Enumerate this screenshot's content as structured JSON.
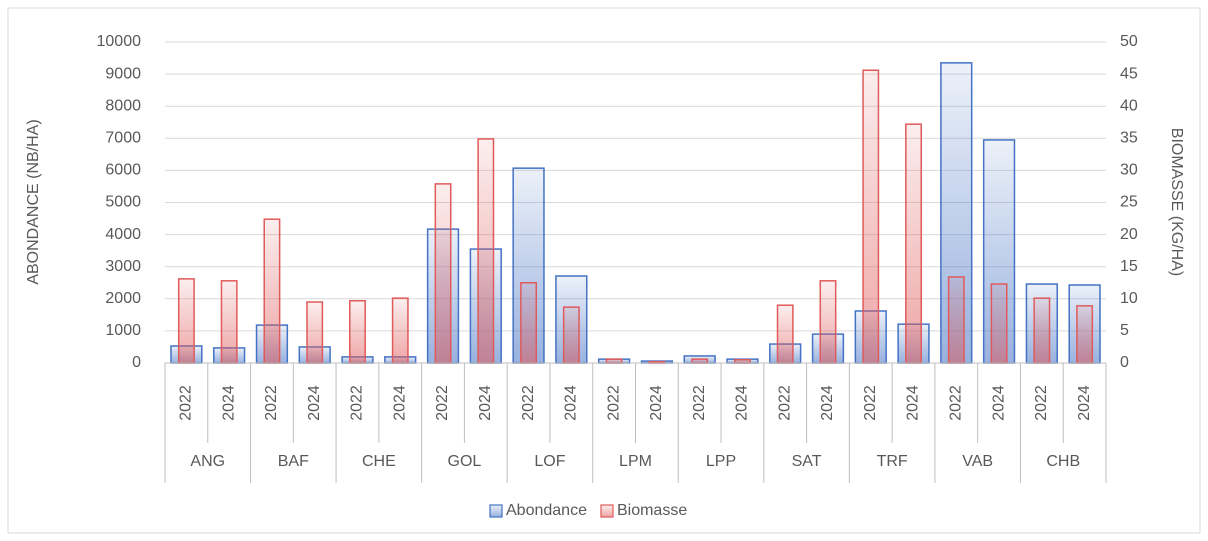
{
  "chart_data": {
    "type": "bar",
    "categories": [
      "2022",
      "2024",
      "2022",
      "2024",
      "2022",
      "2024",
      "2022",
      "2024",
      "2022",
      "2024",
      "2022",
      "2024",
      "2022",
      "2024",
      "2022",
      "2024",
      "2022",
      "2024",
      "2022",
      "2024",
      "2022",
      "2024"
    ],
    "groups": [
      "ANG",
      "BAF",
      "CHE",
      "GOL",
      "LOF",
      "LPM",
      "LPP",
      "SAT",
      "TRF",
      "VAB",
      "CHB"
    ],
    "series": [
      {
        "name": "Abondance",
        "color": "#4472c4",
        "values": [
          530,
          470,
          1180,
          500,
          190,
          190,
          4170,
          3550,
          6070,
          2710,
          120,
          60,
          220,
          120,
          590,
          900,
          1620,
          1210,
          9350,
          6950,
          2460,
          2430
        ]
      },
      {
        "name": "Biomasse",
        "color": "#e05a5a",
        "axis": "y2",
        "values": [
          13.1,
          12.8,
          22.4,
          9.5,
          9.7,
          10.1,
          27.9,
          34.9,
          12.5,
          8.7,
          0.6,
          0.2,
          0.6,
          0.5,
          9.0,
          12.8,
          45.6,
          37.2,
          13.4,
          12.3,
          10.1,
          8.9
        ]
      }
    ],
    "ylabel": "ABONDANCE (NB/HA)",
    "y2label": "BIOMASSE (KG/HA)",
    "ylim": [
      0,
      10000
    ],
    "yticks": [
      0,
      1000,
      2000,
      3000,
      4000,
      5000,
      6000,
      7000,
      8000,
      9000,
      10000
    ],
    "y2lim": [
      0,
      50
    ],
    "y2ticks": [
      0,
      5,
      10,
      15,
      20,
      25,
      30,
      35,
      40,
      45,
      50
    ],
    "grid": true,
    "legend": "bottom"
  }
}
